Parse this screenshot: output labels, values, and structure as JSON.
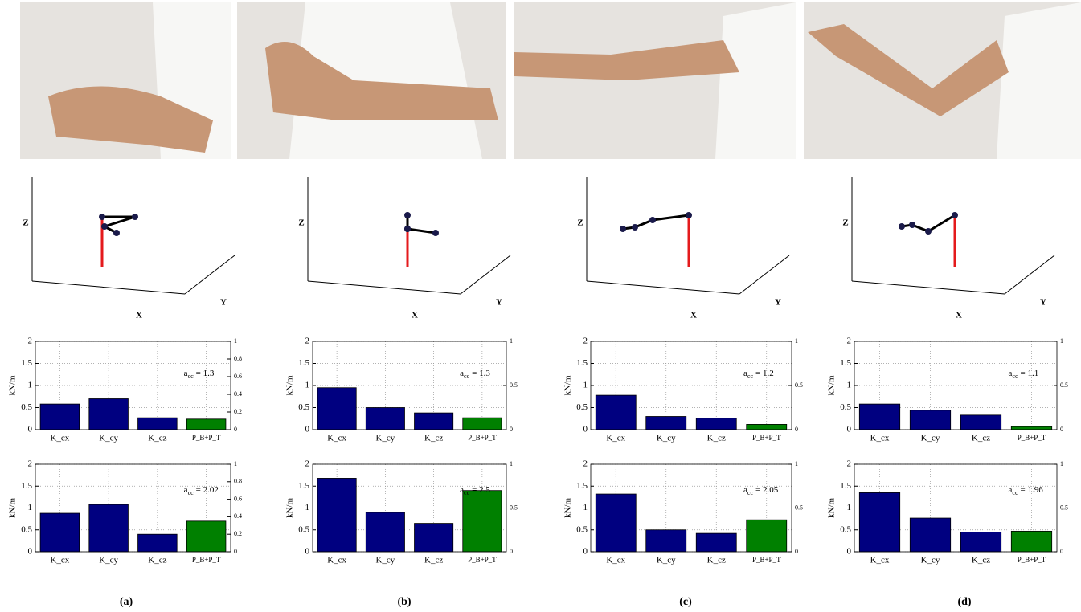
{
  "chart_data": [
    {
      "type": "bar",
      "categories": [
        "K_cx",
        "K_cy",
        "K_cz",
        "P_B+P_T"
      ],
      "values": [
        0.58,
        0.7,
        0.27,
        0.24
      ],
      "colors": [
        "#000080",
        "#000080",
        "#000080",
        "#008000"
      ],
      "ylabel": "kN/m",
      "ylim": [
        0,
        2
      ],
      "yticks": [
        0,
        0.5,
        1,
        1.5,
        2
      ],
      "y2lim": [
        0,
        1
      ],
      "y2ticks": [
        0,
        0.2,
        0.4,
        0.6,
        0.8,
        1
      ],
      "grid": true,
      "annotation": {
        "symbol": "a",
        "subscript": "cc",
        "text": "= 1.3"
      }
    },
    {
      "type": "bar",
      "categories": [
        "K_cx",
        "K_cy",
        "K_cz",
        "P_B+P_T"
      ],
      "values": [
        0.95,
        0.5,
        0.38,
        0.27
      ],
      "colors": [
        "#000080",
        "#000080",
        "#000080",
        "#008000"
      ],
      "ylabel": "kN/m",
      "ylim": [
        0,
        2
      ],
      "yticks": [
        0,
        0.5,
        1,
        1.5,
        2
      ],
      "y2lim": [
        0,
        1
      ],
      "y2ticks": [
        0,
        0.5,
        1
      ],
      "grid": true,
      "annotation": {
        "symbol": "a",
        "subscript": "cc",
        "text": "= 1.3"
      }
    },
    {
      "type": "bar",
      "categories": [
        "K_cx",
        "K_cy",
        "K_cz",
        "P_B+P_T"
      ],
      "values": [
        0.78,
        0.3,
        0.26,
        0.12
      ],
      "colors": [
        "#000080",
        "#000080",
        "#000080",
        "#008000"
      ],
      "ylabel": "kN/m",
      "ylim": [
        0,
        2
      ],
      "yticks": [
        0,
        0.5,
        1,
        1.5,
        2
      ],
      "y2lim": [
        0,
        1
      ],
      "y2ticks": [
        0,
        0.5,
        1
      ],
      "grid": true,
      "annotation": {
        "symbol": "a",
        "subscript": "cc",
        "text": "= 1.2"
      }
    },
    {
      "type": "bar",
      "categories": [
        "K_cx",
        "K_cy",
        "K_cz",
        "P_B+P_T"
      ],
      "values": [
        0.58,
        0.44,
        0.33,
        0.07
      ],
      "colors": [
        "#000080",
        "#000080",
        "#000080",
        "#008000"
      ],
      "ylabel": "kN/m",
      "ylim": [
        0,
        2
      ],
      "yticks": [
        0,
        0.5,
        1,
        1.5,
        2
      ],
      "y2lim": [
        0,
        1
      ],
      "y2ticks": [
        0,
        0.5,
        1
      ],
      "grid": true,
      "annotation": {
        "symbol": "a",
        "subscript": "cc",
        "text": "= 1.1"
      }
    },
    {
      "type": "bar",
      "categories": [
        "K_cx",
        "K_cy",
        "K_cz",
        "P_B+P_T"
      ],
      "values": [
        0.88,
        1.08,
        0.4,
        0.7
      ],
      "colors": [
        "#000080",
        "#000080",
        "#000080",
        "#008000"
      ],
      "ylabel": "kN/m",
      "ylim": [
        0,
        2
      ],
      "yticks": [
        0,
        0.5,
        1,
        1.5,
        2
      ],
      "y2lim": [
        0,
        1
      ],
      "y2ticks": [
        0,
        0.2,
        0.4,
        0.6,
        0.8,
        1
      ],
      "grid": true,
      "annotation": {
        "symbol": "a",
        "subscript": "cc",
        "text": "= 2.02"
      }
    },
    {
      "type": "bar",
      "categories": [
        "K_cx",
        "K_cy",
        "K_cz",
        "P_B+P_T"
      ],
      "values": [
        1.68,
        0.9,
        0.65,
        1.4
      ],
      "colors": [
        "#000080",
        "#000080",
        "#000080",
        "#008000"
      ],
      "ylabel": "kN/m",
      "ylim": [
        0,
        2
      ],
      "yticks": [
        0,
        0.5,
        1,
        1.5,
        2
      ],
      "y2lim": [
        0,
        1
      ],
      "y2ticks": [
        0,
        0.5,
        1
      ],
      "grid": true,
      "annotation": {
        "symbol": "a",
        "subscript": "cc",
        "text": "= 2.5"
      }
    },
    {
      "type": "bar",
      "categories": [
        "K_cx",
        "K_cy",
        "K_cz",
        "P_B+P_T"
      ],
      "values": [
        1.32,
        0.5,
        0.42,
        0.73
      ],
      "colors": [
        "#000080",
        "#000080",
        "#000080",
        "#008000"
      ],
      "ylabel": "kN/m",
      "ylim": [
        0,
        2
      ],
      "yticks": [
        0,
        0.5,
        1,
        1.5,
        2
      ],
      "y2lim": [
        0,
        1
      ],
      "y2ticks": [
        0,
        0.5,
        1
      ],
      "grid": true,
      "annotation": {
        "symbol": "a",
        "subscript": "cc",
        "text": "= 2.05"
      }
    },
    {
      "type": "bar",
      "categories": [
        "K_cx",
        "K_cy",
        "K_cz",
        "P_B+P_T"
      ],
      "values": [
        1.35,
        0.77,
        0.45,
        0.47
      ],
      "colors": [
        "#000080",
        "#000080",
        "#000080",
        "#008000"
      ],
      "ylabel": "kN/m",
      "ylim": [
        0,
        2
      ],
      "yticks": [
        0,
        0.5,
        1,
        1.5,
        2
      ],
      "y2lim": [
        0,
        1
      ],
      "y2ticks": [
        0,
        0.5,
        1
      ],
      "grid": true,
      "annotation": {
        "symbol": "a",
        "subscript": "cc",
        "text": "= 1.96"
      }
    }
  ],
  "panels": [
    {
      "label": "(a)",
      "x": "X",
      "y": "Y",
      "z": "Z"
    },
    {
      "label": "(b)",
      "x": "X",
      "y": "Y",
      "z": "Z"
    },
    {
      "label": "(c)",
      "x": "X",
      "y": "Y",
      "z": "Z"
    },
    {
      "label": "(d)",
      "x": "X",
      "y": "Y",
      "z": "Z"
    }
  ]
}
